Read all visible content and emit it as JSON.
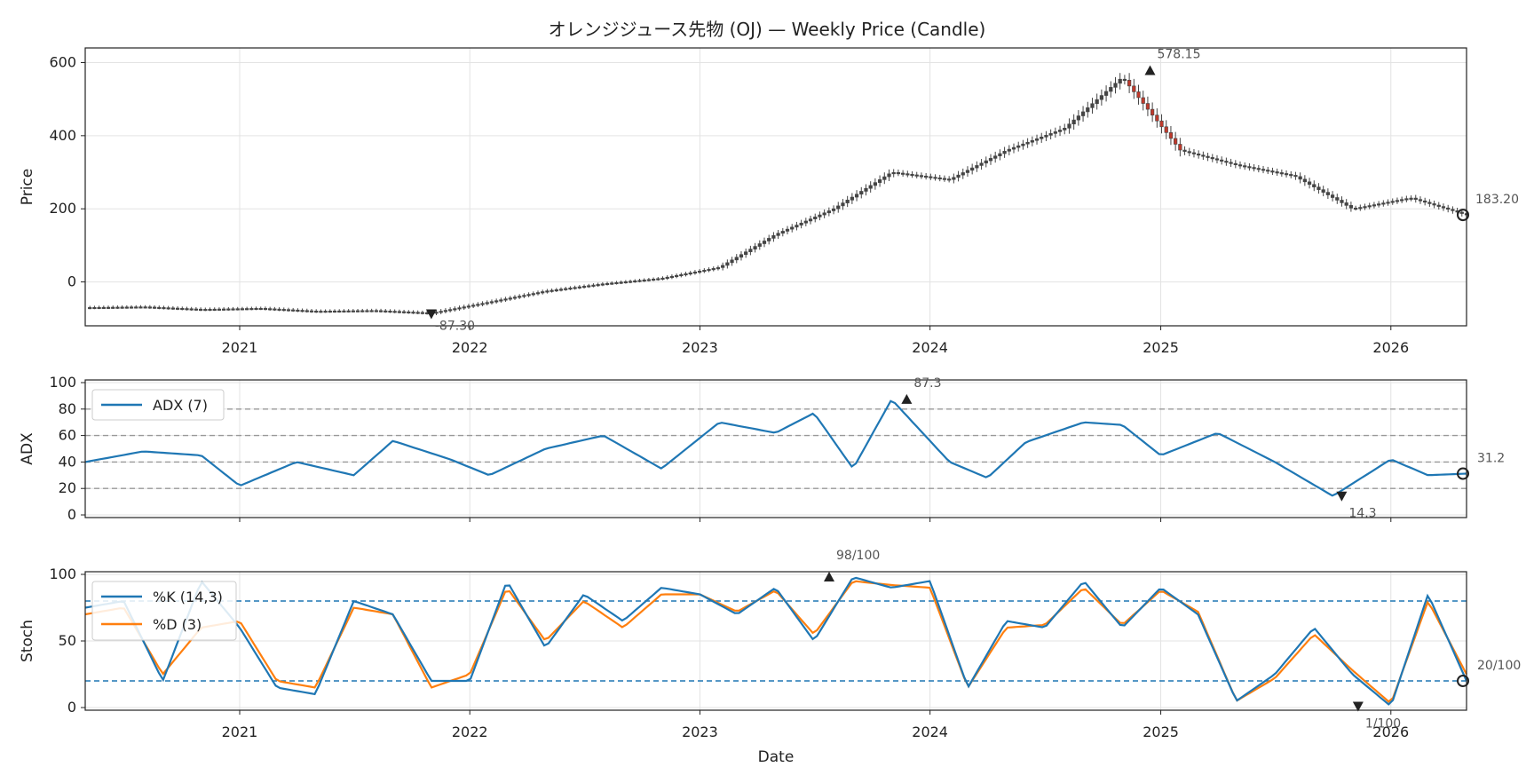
{
  "chart_data": {
    "type": "candlestick",
    "title": "オレンジジュース先物 (OJ) — Weekly Price (Candle)",
    "xlabel": "Date",
    "x_range": [
      "2020-05-01",
      "2026-05-01"
    ],
    "x_ticks": [
      "2021",
      "2022",
      "2023",
      "2024",
      "2025",
      "2026"
    ],
    "colors": {
      "up": "#1a9a7a",
      "down": "#c0392b",
      "neutral": "#444444",
      "adx": "#1f77b4",
      "k": "#1f77b4",
      "d": "#ff7f0e",
      "ref_gray": "#999999",
      "ref_blue": "#1f77b4"
    },
    "price": {
      "ylabel": "Price",
      "ylim": [
        -120,
        640
      ],
      "y_ticks": [
        "0",
        "200",
        "400",
        "600"
      ],
      "x": [
        "2020-05",
        "2020-08",
        "2020-11",
        "2021-02",
        "2021-05",
        "2021-08",
        "2021-11",
        "2022-02",
        "2022-05",
        "2022-08",
        "2022-11",
        "2023-02",
        "2023-05",
        "2023-08",
        "2023-11",
        "2024-02",
        "2024-05",
        "2024-08",
        "2024-11",
        "2025-02",
        "2025-05",
        "2025-08",
        "2025-11",
        "2026-02",
        "2026-05"
      ],
      "close": [
        -70,
        -68,
        -75,
        -72,
        -80,
        -78,
        -85,
        -55,
        -25,
        -5,
        10,
        40,
        130,
        200,
        300,
        280,
        360,
        420,
        560,
        360,
        320,
        290,
        200,
        230,
        183.2
      ],
      "max_label": "578.15",
      "max_date": "2024-12-15",
      "max_value": 578.15,
      "min_label": "-87.30",
      "min_date": "2021-11-01",
      "min_value": -87.3,
      "last_label": "183.20",
      "last_value": 183.2
    },
    "adx": {
      "ylabel": "ADX",
      "ylim": [
        -2,
        102
      ],
      "y_ticks": [
        "0",
        "20",
        "40",
        "60",
        "80",
        "100"
      ],
      "ref_lines": [
        20,
        40,
        60,
        80
      ],
      "legend": "ADX (7)",
      "x": [
        "2020-05",
        "2020-08",
        "2020-11",
        "2021-01",
        "2021-04",
        "2021-07",
        "2021-09",
        "2021-12",
        "2022-02",
        "2022-05",
        "2022-08",
        "2022-11",
        "2023-02",
        "2023-05",
        "2023-07",
        "2023-09",
        "2023-11",
        "2024-02",
        "2024-04",
        "2024-06",
        "2024-09",
        "2024-11",
        "2025-01",
        "2025-04",
        "2025-07",
        "2025-10",
        "2026-01",
        "2026-03",
        "2026-05"
      ],
      "values": [
        40,
        48,
        45,
        22,
        40,
        30,
        56,
        42,
        30,
        50,
        60,
        35,
        70,
        62,
        77,
        35,
        87.3,
        40,
        28,
        55,
        70,
        68,
        45,
        62,
        40,
        14.3,
        42,
        30,
        31.2
      ],
      "max_label": "87.3",
      "max_date": "2023-11-25",
      "max_value": 87.3,
      "min_label": "14.3",
      "min_date": "2025-10-15",
      "min_value": 14.3,
      "last_label": "31.2",
      "last_value": 31.2
    },
    "stoch": {
      "ylabel": "Stoch",
      "ylim": [
        -2,
        102
      ],
      "y_ticks": [
        "0",
        "50",
        "100"
      ],
      "ref_lines": [
        20,
        80
      ],
      "legend": [
        "%K (14,3)",
        "%D (3)"
      ],
      "x": [
        "2020-05",
        "2020-07",
        "2020-09",
        "2020-11",
        "2021-01",
        "2021-03",
        "2021-05",
        "2021-07",
        "2021-09",
        "2021-11",
        "2022-01",
        "2022-03",
        "2022-05",
        "2022-07",
        "2022-09",
        "2022-11",
        "2023-01",
        "2023-03",
        "2023-05",
        "2023-07",
        "2023-09",
        "2023-11",
        "2024-01",
        "2024-03",
        "2024-05",
        "2024-07",
        "2024-09",
        "2024-11",
        "2025-01",
        "2025-03",
        "2025-05",
        "2025-07",
        "2025-09",
        "2025-11",
        "2026-01",
        "2026-03",
        "2026-05"
      ],
      "k": [
        75,
        80,
        20,
        95,
        60,
        15,
        10,
        80,
        70,
        20,
        20,
        95,
        45,
        85,
        65,
        90,
        85,
        70,
        90,
        50,
        98,
        90,
        95,
        15,
        65,
        60,
        95,
        60,
        90,
        70,
        5,
        25,
        60,
        25,
        1,
        85,
        20
      ],
      "d": [
        70,
        75,
        25,
        60,
        65,
        20,
        15,
        75,
        70,
        15,
        25,
        90,
        50,
        80,
        60,
        85,
        85,
        72,
        88,
        55,
        95,
        92,
        90,
        15,
        60,
        62,
        90,
        62,
        88,
        72,
        5,
        22,
        55,
        28,
        3,
        80,
        25
      ],
      "max_label": "98/100",
      "max_date": "2023-07-25",
      "max_value": 98,
      "min_label": "1/100",
      "min_date": "2025-11-10",
      "min_value": 1,
      "last_label": "20/100",
      "last_value": 20
    }
  }
}
